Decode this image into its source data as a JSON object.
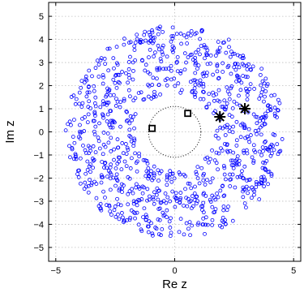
{
  "chart_data": {
    "type": "scatter",
    "xlabel": "Re z",
    "ylabel": "Im z",
    "xlim": [
      -5.3,
      5.3
    ],
    "ylim": [
      -5.6,
      5.6
    ],
    "x_ticks": [
      -5,
      0,
      5
    ],
    "y_ticks": [
      -5,
      -4,
      -3,
      -2,
      -1,
      0,
      1,
      2,
      3,
      4,
      5
    ],
    "grid": true,
    "colors": {
      "points": "#0000ff",
      "markers": "#000000",
      "grid": "#bfbfbf",
      "axes": "#000000"
    },
    "annulus_points": {
      "description_shape": "annulus",
      "inner_radius": 1.7,
      "outer_radius": 4.6,
      "count": 1000
    },
    "inner_circle": {
      "radius": 1.1,
      "style": "dotted"
    },
    "squares": [
      {
        "x": -0.95,
        "y": 0.15
      },
      {
        "x": 0.55,
        "y": 0.8
      }
    ],
    "stars": [
      {
        "x": 1.9,
        "y": 0.65
      },
      {
        "x": 2.95,
        "y": 1.0
      }
    ]
  }
}
